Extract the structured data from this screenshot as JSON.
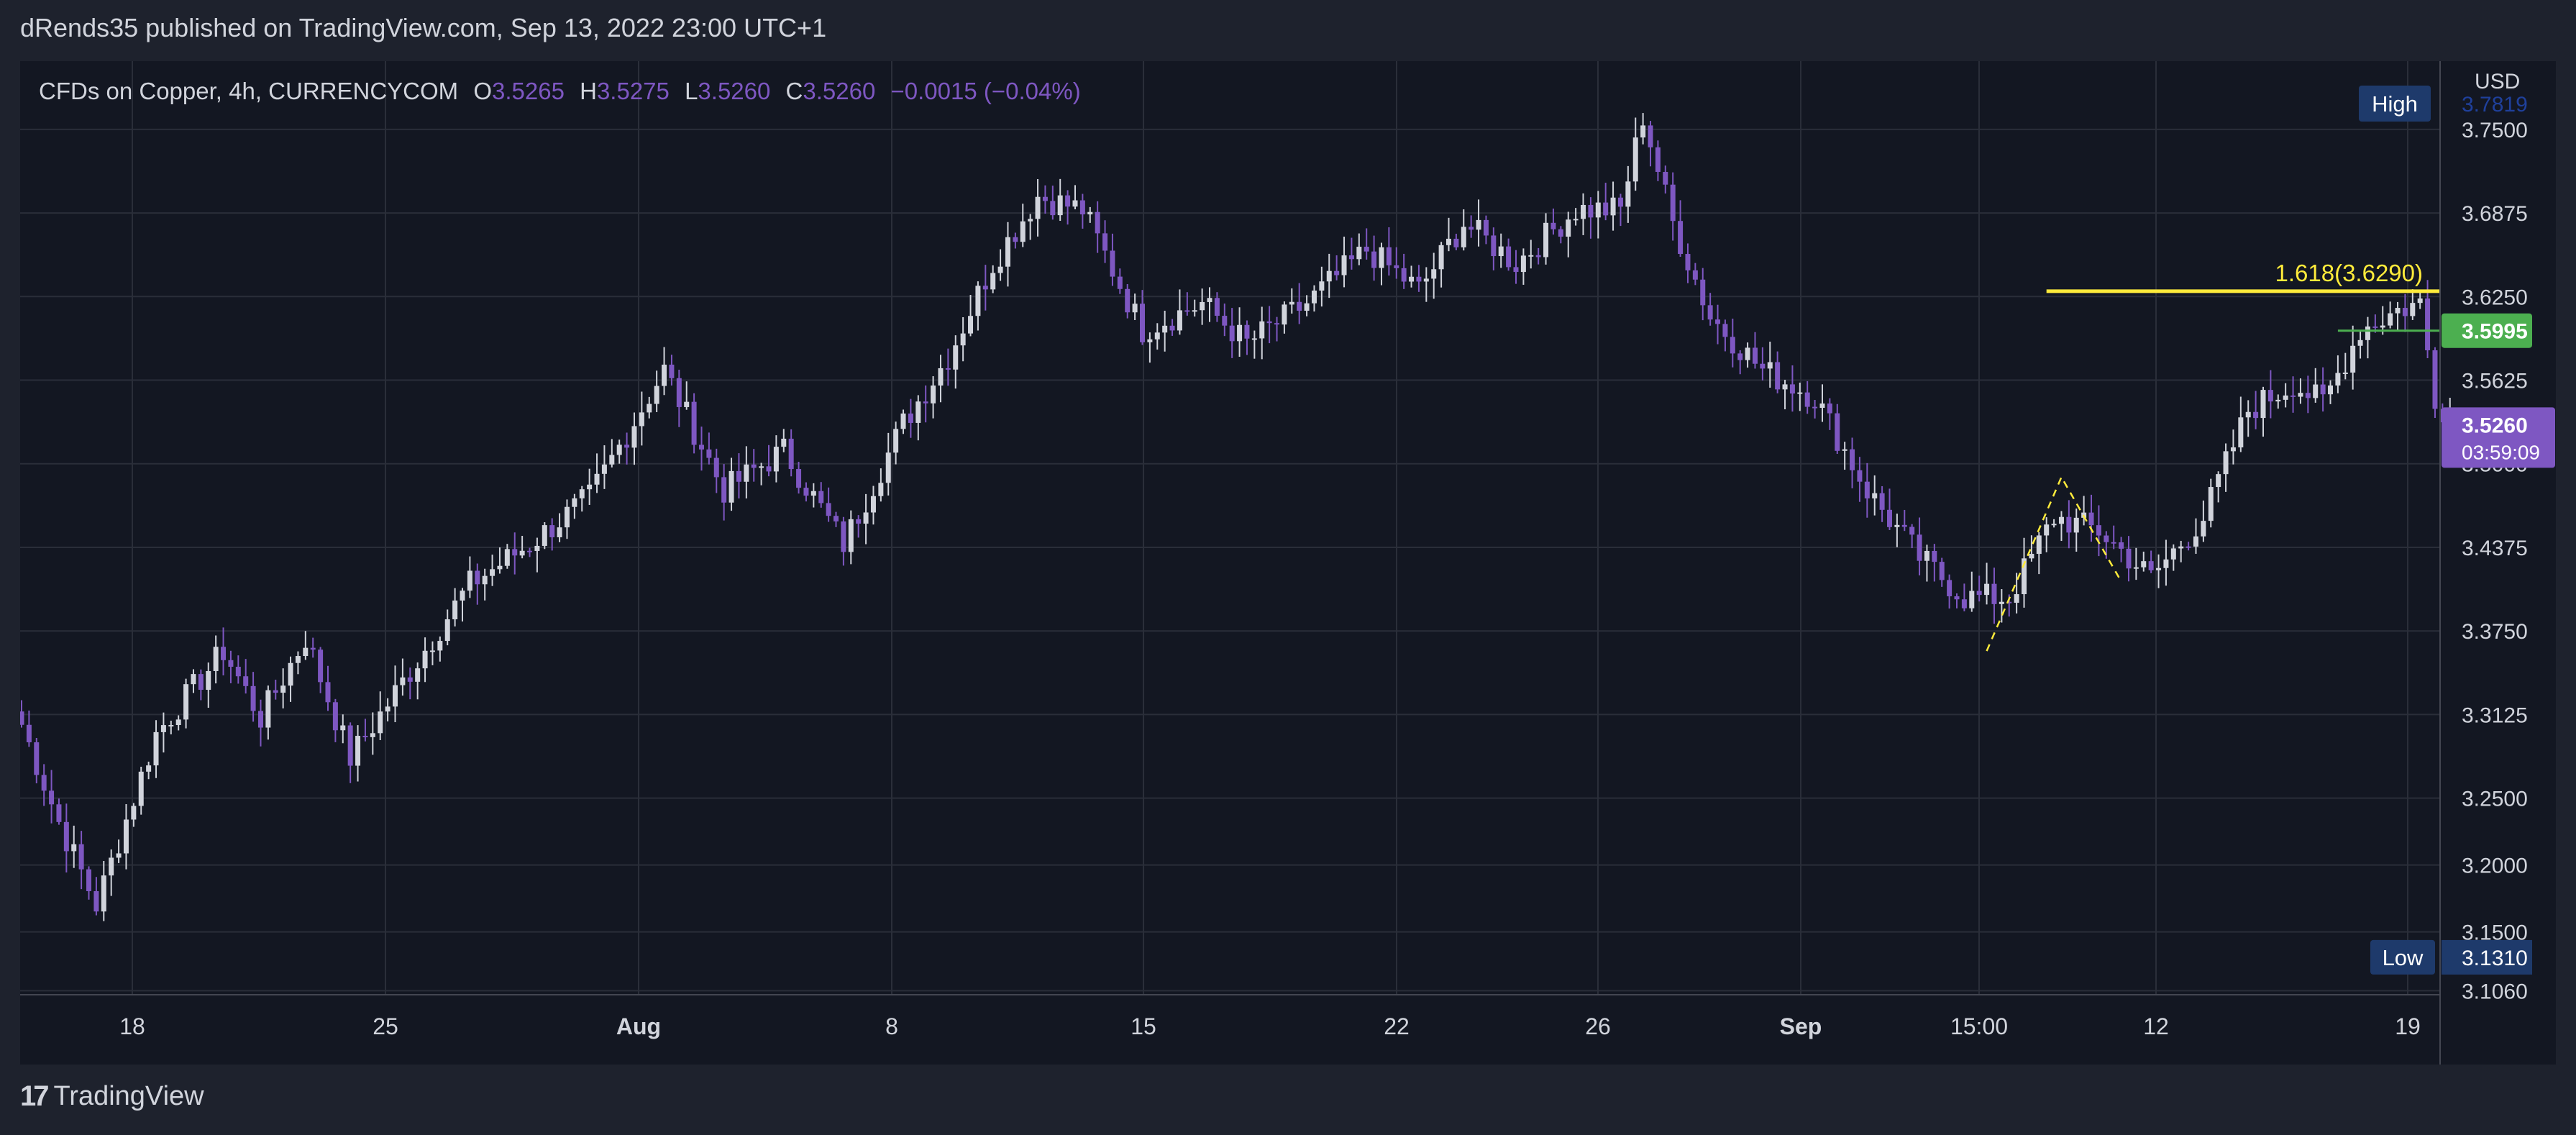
{
  "header": {
    "published_text": "dRends35 published on TradingView.com, Sep 13, 2022 23:00 UTC+1"
  },
  "legend": {
    "symbol": "CFDs on Copper, 4h, CURRENCYCOM",
    "o_label": "O",
    "o_value": "3.5265",
    "h_label": "H",
    "h_value": "3.5275",
    "l_label": "L",
    "l_value": "3.5260",
    "c_label": "C",
    "c_value": "3.5260",
    "change": "−0.0015 (−0.04%)"
  },
  "footer": {
    "brand": "TradingView",
    "logo_mark": "17"
  },
  "colors": {
    "background": "#1e222d",
    "chart_bg": "#131722",
    "grid": "#2a2e39",
    "up_candle": "#d1d4dc",
    "down_candle": "#7e57c2",
    "fib_line": "#ffeb3b",
    "support_line": "#4caf50",
    "price_badge": "#7e57c2",
    "high_low_badge": "#1e3a6b"
  },
  "chart_data": {
    "type": "candlestick",
    "title": "CFDs on Copper, 4h, CURRENCYCOM",
    "currency": "USD",
    "y_axis_ticks": [
      "3.7500",
      "3.6875",
      "3.6250",
      "3.5625",
      "3.5000",
      "3.4375",
      "3.3750",
      "3.3125",
      "3.2500",
      "3.2000",
      "3.1500",
      "3.1060"
    ],
    "y_axis_tick_values": [
      3.75,
      3.6875,
      3.625,
      3.5625,
      3.5,
      3.4375,
      3.375,
      3.3125,
      3.25,
      3.2,
      3.15,
      3.106
    ],
    "ylim": [
      3.103,
      3.801
    ],
    "x_axis_ticks": [
      "18",
      "25",
      "Aug",
      "8",
      "15",
      "22",
      "26",
      "Sep",
      "15:00",
      "12",
      "19"
    ],
    "x_axis_tick_bold": [
      false,
      false,
      true,
      false,
      false,
      false,
      false,
      true,
      false,
      false,
      false
    ],
    "grid": true,
    "last_price": "3.5260",
    "countdown": "03:59:09",
    "high_label": "High",
    "high_value": "3.7819",
    "low_label": "Low",
    "low_value": "3.1310",
    "support_price_label": "3.5995",
    "fib_label": "1.618(3.6290)",
    "fib_price": 3.629,
    "support_price": 3.5995,
    "anchors": [
      {
        "i": 0,
        "p": 3.305
      },
      {
        "i": 5,
        "p": 3.232
      },
      {
        "i": 10,
        "p": 3.17
      },
      {
        "i": 18,
        "p": 3.298
      },
      {
        "i": 27,
        "p": 3.36
      },
      {
        "i": 32,
        "p": 3.31
      },
      {
        "i": 38,
        "p": 3.37
      },
      {
        "i": 44,
        "p": 3.28
      },
      {
        "i": 52,
        "p": 3.345
      },
      {
        "i": 60,
        "p": 3.41
      },
      {
        "i": 68,
        "p": 3.44
      },
      {
        "i": 76,
        "p": 3.475
      },
      {
        "i": 86,
        "p": 3.57
      },
      {
        "i": 94,
        "p": 3.48
      },
      {
        "i": 102,
        "p": 3.51
      },
      {
        "i": 110,
        "p": 3.44
      },
      {
        "i": 118,
        "p": 3.53
      },
      {
        "i": 124,
        "p": 3.58
      },
      {
        "i": 130,
        "p": 3.65
      },
      {
        "i": 136,
        "p": 3.7
      },
      {
        "i": 142,
        "p": 3.69
      },
      {
        "i": 150,
        "p": 3.6
      },
      {
        "i": 158,
        "p": 3.62
      },
      {
        "i": 164,
        "p": 3.59
      },
      {
        "i": 172,
        "p": 3.62
      },
      {
        "i": 180,
        "p": 3.66
      },
      {
        "i": 187,
        "p": 3.63
      },
      {
        "i": 193,
        "p": 3.68
      },
      {
        "i": 200,
        "p": 3.65
      },
      {
        "i": 208,
        "p": 3.69
      },
      {
        "i": 214,
        "p": 3.69
      },
      {
        "i": 217,
        "p": 3.76
      },
      {
        "i": 221,
        "p": 3.68
      },
      {
        "i": 226,
        "p": 3.61
      },
      {
        "i": 233,
        "p": 3.57
      },
      {
        "i": 240,
        "p": 3.55
      },
      {
        "i": 247,
        "p": 3.48
      },
      {
        "i": 254,
        "p": 3.43
      },
      {
        "i": 260,
        "p": 3.4
      },
      {
        "i": 266,
        "p": 3.4
      },
      {
        "i": 272,
        "p": 3.46
      },
      {
        "i": 278,
        "p": 3.45
      },
      {
        "i": 285,
        "p": 3.415
      },
      {
        "i": 292,
        "p": 3.46
      },
      {
        "i": 298,
        "p": 3.54
      },
      {
        "i": 304,
        "p": 3.56
      },
      {
        "i": 308,
        "p": 3.545
      },
      {
        "i": 313,
        "p": 3.6
      },
      {
        "i": 318,
        "p": 3.615
      },
      {
        "i": 321,
        "p": 3.62
      },
      {
        "i": 323,
        "p": 3.55
      },
      {
        "i": 326,
        "p": 3.526
      }
    ],
    "wave_pattern": [
      {
        "i": 263,
        "p": 3.36
      },
      {
        "i": 273,
        "p": 3.49
      },
      {
        "i": 281,
        "p": 3.412
      }
    ]
  }
}
